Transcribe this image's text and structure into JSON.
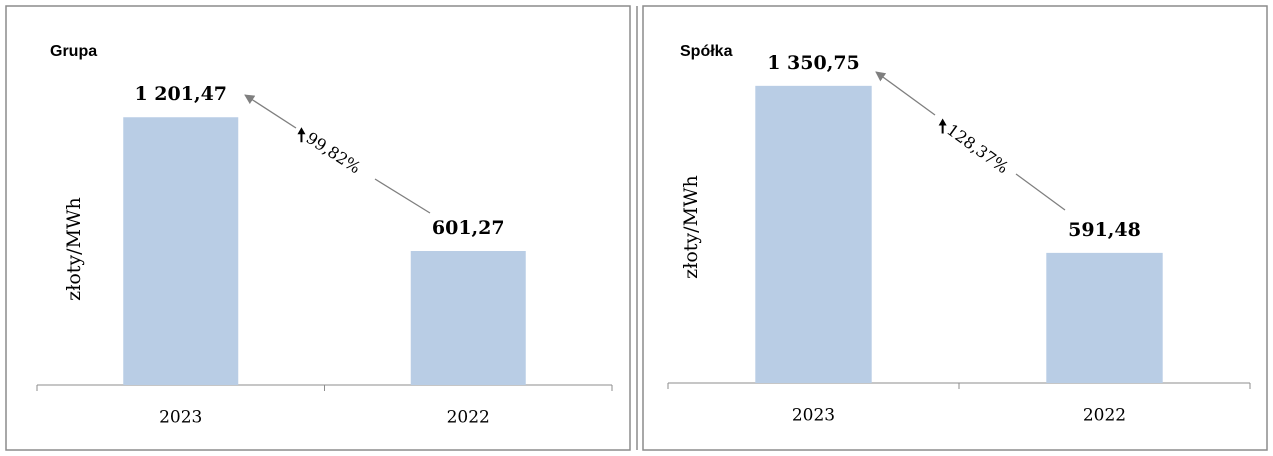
{
  "chart_data": [
    {
      "type": "bar",
      "title": "Grupa",
      "y_label": "złoty/MWh",
      "categories": [
        "2023",
        "2022"
      ],
      "values": [
        1201.47,
        601.27
      ],
      "value_labels": [
        "1 201,47",
        "601,27"
      ],
      "color": "#b9cde5",
      "ylim": [
        0,
        1400
      ],
      "annotation": "99,82%"
    },
    {
      "type": "bar",
      "title": "Spółka",
      "y_label": "złoty/MWh",
      "categories": [
        "2023",
        "2022"
      ],
      "values": [
        1350.75,
        591.48
      ],
      "value_labels": [
        "1 350,75",
        "591,48"
      ],
      "color": "#b9cde5",
      "ylim": [
        0,
        1600
      ],
      "annotation": "128,37%"
    }
  ]
}
